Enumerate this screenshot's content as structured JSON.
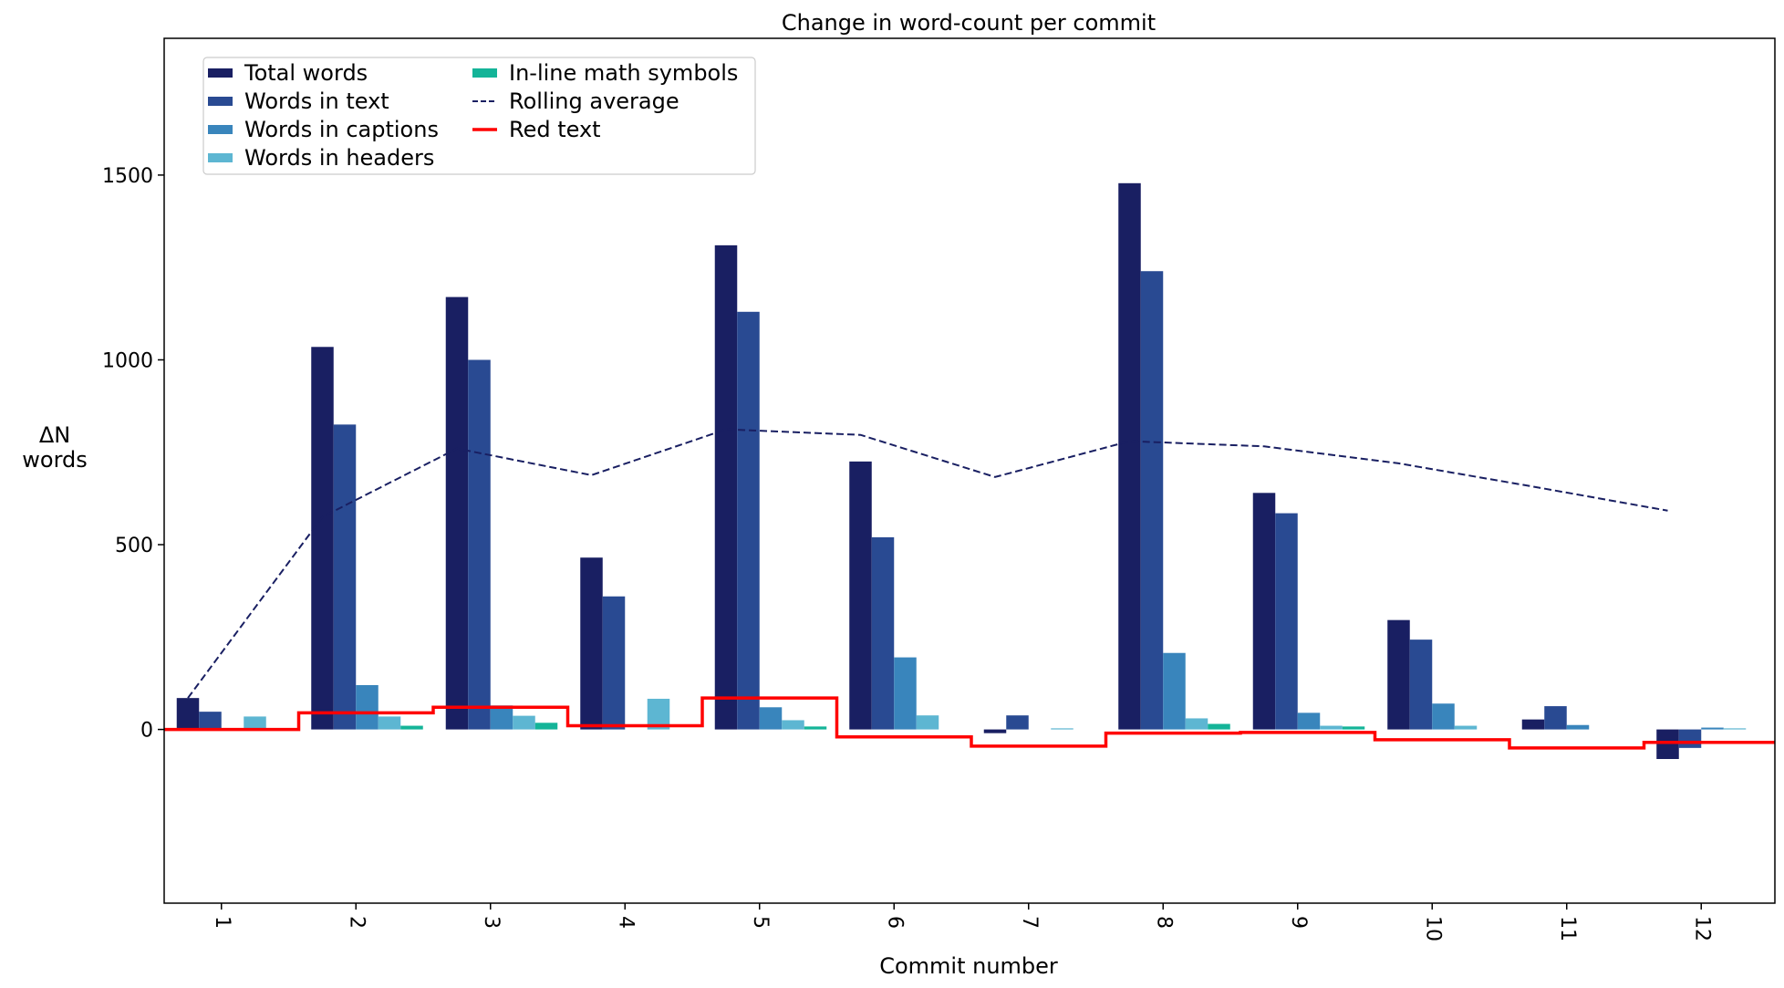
{
  "chart_data": {
    "type": "bar",
    "title": "Change in word-count per commit",
    "xlabel": "Commit number",
    "ylabel": [
      "ΔN",
      "words"
    ],
    "categories": [
      "1",
      "2",
      "3",
      "4",
      "5",
      "6",
      "7",
      "8",
      "9",
      "10",
      "11",
      "12"
    ],
    "ylim": [
      -470,
      1870
    ],
    "yticks": [
      0,
      500,
      1000,
      1500
    ],
    "grid": false,
    "legend_position": "upper-left",
    "series": [
      {
        "name": "Total words",
        "kind": "bar",
        "color": "#191f62",
        "values": [
          85,
          1035,
          1170,
          465,
          1310,
          725,
          -10,
          1478,
          640,
          296,
          27,
          -80
        ]
      },
      {
        "name": "Words in text",
        "kind": "bar",
        "color": "#294a92",
        "values": [
          48,
          825,
          1000,
          360,
          1130,
          520,
          38,
          1240,
          585,
          243,
          63,
          -50
        ]
      },
      {
        "name": "Words in captions",
        "kind": "bar",
        "color": "#3985bc",
        "values": [
          0,
          120,
          65,
          0,
          60,
          195,
          0,
          207,
          45,
          70,
          12,
          5
        ]
      },
      {
        "name": "Words in headers",
        "kind": "bar",
        "color": "#5db6d2",
        "values": [
          35,
          35,
          37,
          83,
          25,
          38,
          3,
          30,
          10,
          10,
          0,
          3
        ]
      },
      {
        "name": "In-line math symbols",
        "kind": "bar",
        "color": "#14b498",
        "values": [
          0,
          10,
          18,
          0,
          8,
          0,
          0,
          15,
          8,
          0,
          0,
          0
        ]
      },
      {
        "name": "Rolling average",
        "kind": "line",
        "style": "dashed",
        "color": "#191f62",
        "values": [
          85,
          575,
          760,
          688,
          812,
          797,
          683,
          780,
          766,
          720,
          657,
          592
        ]
      },
      {
        "name": "Red text",
        "kind": "step",
        "color": "#ff0000",
        "values": [
          0,
          45,
          60,
          10,
          85,
          -20,
          -45,
          -10,
          -8,
          -28,
          -50,
          -35
        ]
      }
    ]
  }
}
